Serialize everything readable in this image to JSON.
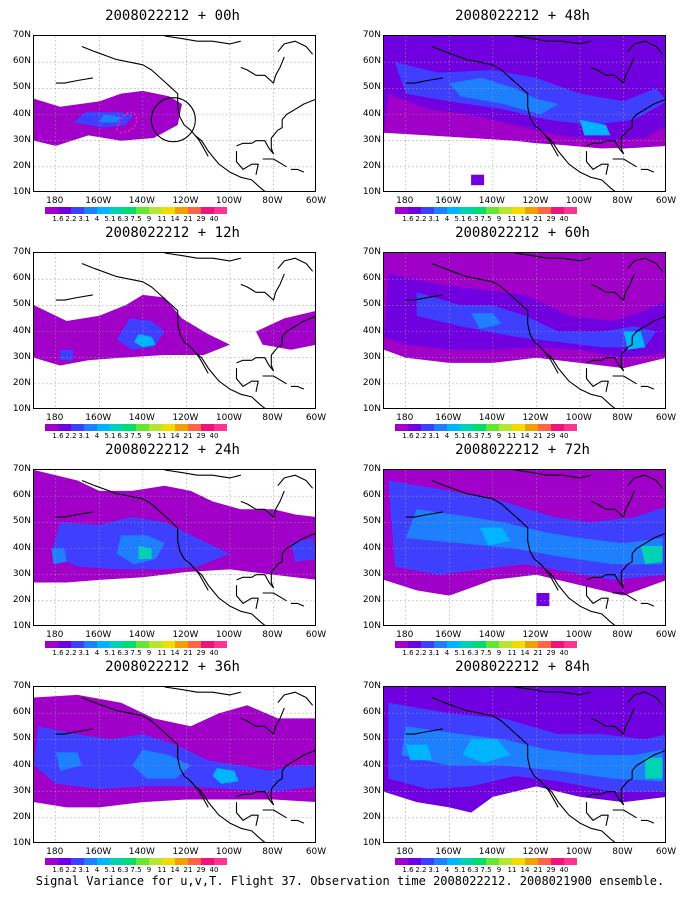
{
  "panels": [
    {
      "title": "2008022212 + 00h",
      "lead": "00h",
      "pattern": "p00"
    },
    {
      "title": "2008022212 + 48h",
      "lead": "48h",
      "pattern": "p48"
    },
    {
      "title": "2008022212 + 12h",
      "lead": "12h",
      "pattern": "p12"
    },
    {
      "title": "2008022212 + 60h",
      "lead": "60h",
      "pattern": "p60"
    },
    {
      "title": "2008022212 + 24h",
      "lead": "24h",
      "pattern": "p24"
    },
    {
      "title": "2008022212 + 72h",
      "lead": "72h",
      "pattern": "p72"
    },
    {
      "title": "2008022212 + 36h",
      "lead": "36h",
      "pattern": "p36"
    },
    {
      "title": "2008022212 + 84h",
      "lead": "84h",
      "pattern": "p84"
    }
  ],
  "axes": {
    "lat_labels": [
      "70N",
      "60N",
      "50N",
      "40N",
      "30N",
      "20N",
      "10N"
    ],
    "lon_labels": [
      "180",
      "160W",
      "140W",
      "120W",
      "100W",
      "80W",
      "60W"
    ]
  },
  "colorbar": {
    "labels": [
      "1.6",
      "2.2",
      "3.1",
      "4",
      "5.1",
      "6.3",
      "7.5",
      "9",
      "11",
      "14",
      "21",
      "29",
      "40"
    ],
    "colors": [
      "#a000c8",
      "#7000e0",
      "#3f3fff",
      "#1e80ff",
      "#00b4ff",
      "#00d2b4",
      "#00dc6e",
      "#64e632",
      "#b4e632",
      "#f0dc00",
      "#f0a000",
      "#ff6446",
      "#f01478",
      "#ff3296"
    ]
  },
  "caption": "Signal Variance for u,v,T. Flight 37. Observation time 2008022212. 2008021900 ensemble."
}
